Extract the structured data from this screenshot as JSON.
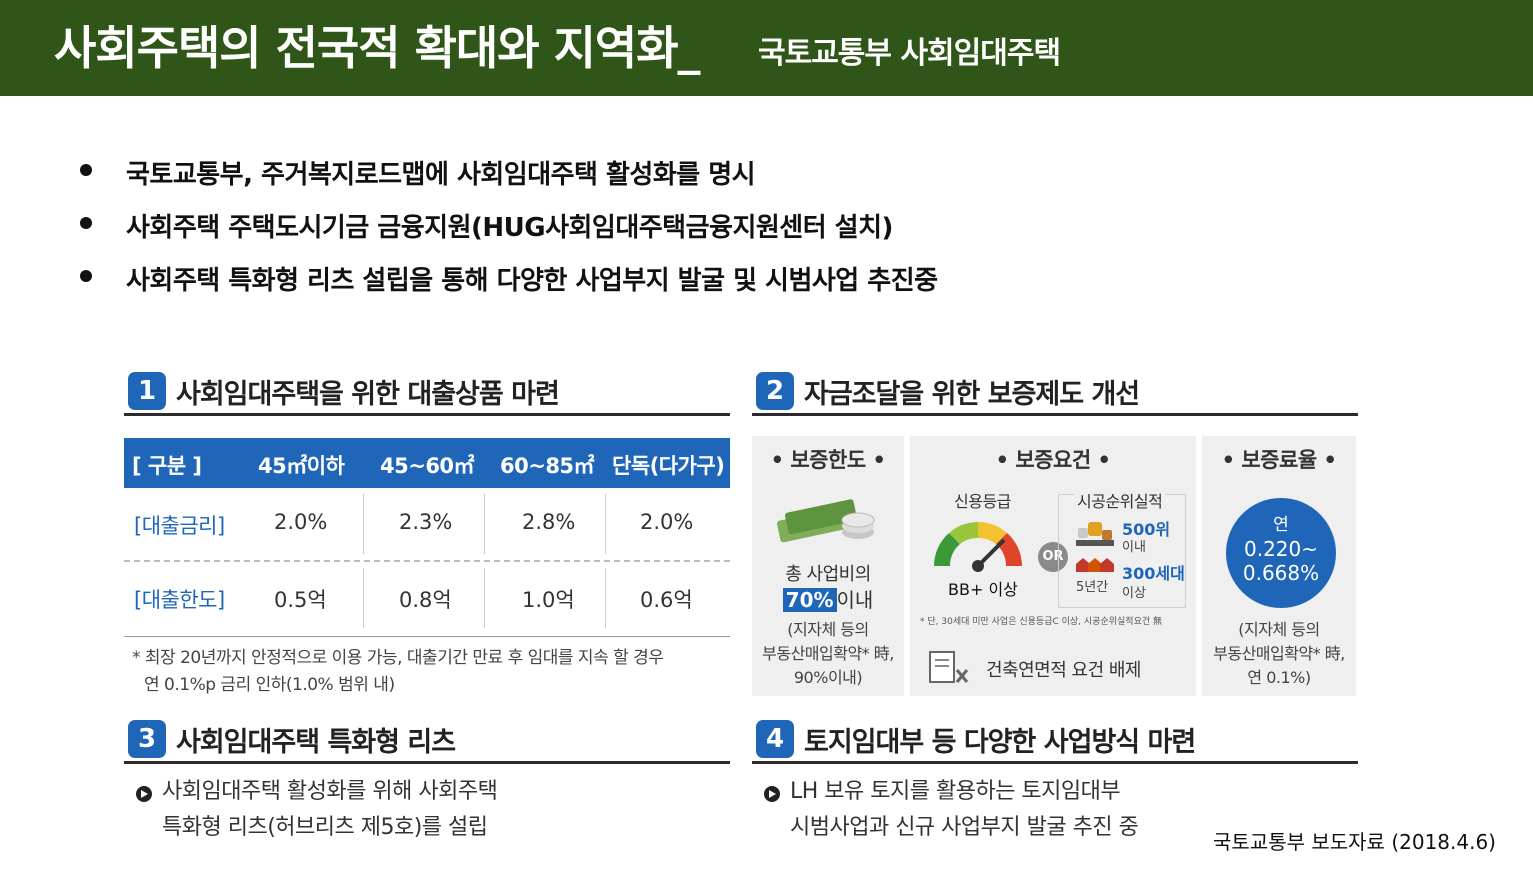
{
  "header": {
    "title": "사회주택의 전국적 확대와 지역화_",
    "subtitle": "국토교통부 사회임대주택"
  },
  "bullets": [
    "국토교통부, 주거복지로드맵에 사회임대주택 활성화를 명시",
    "사회주택 주택도시기금 금융지원(HUG사회임대주택금융지원센터 설치)",
    "사회주택 특화형 리츠 설립을 통해 다양한 사업부지 발굴 및 시범사업 추진중"
  ],
  "sections": {
    "s1": {
      "num": "1",
      "title": "사회임대주택을 위한 대출상품 마련"
    },
    "s2": {
      "num": "2",
      "title": "자금조달을 위한 보증제도 개선"
    },
    "s3": {
      "num": "3",
      "title": "사회임대주택 특화형 리츠"
    },
    "s4": {
      "num": "4",
      "title": "토지임대부 등 다양한 사업방식 마련"
    }
  },
  "loan_table": {
    "headers": [
      "[  구분  ]",
      "45㎡이하",
      "45~60㎡",
      "60~85㎡",
      "단독(다가구)"
    ],
    "rows": [
      {
        "label": "[대출금리]",
        "values": [
          "2.0%",
          "2.3%",
          "2.8%",
          "2.0%"
        ]
      },
      {
        "label": "[대출한도]",
        "values": [
          "0.5억",
          "0.8억",
          "1.0억",
          "0.6억"
        ]
      }
    ],
    "note_line1": "* 최장 20년까지 안정적으로 이용 가능, 대출기간 만료 후 임대를 지속 할 경우",
    "note_line2": "연 0.1%p 금리 인하(1.0% 범위 내)"
  },
  "guarantee": {
    "limit": {
      "title": "• 보증한도 •",
      "line1": "총 사업비의",
      "highlight": "70%",
      "after_highlight": "이내",
      "line3": "(지자체 등의",
      "line4": "부동산매입확약* 時,",
      "line5": "90%이내)"
    },
    "requirements": {
      "title": "• 보증요건 •",
      "credit_label": "신용등급",
      "credit_value": "BB+ 이상",
      "or_label": "OR",
      "perf_label": "시공순위실적",
      "rank_value": "500위",
      "rank_sub": "이내",
      "years_value": "5년간",
      "units_value": "300세대",
      "units_sub": "이상",
      "footnote": "* 단, 30세대 미만 사업은 신용등급C 이상, 시공순위실적요건 無",
      "exempt": "건축연면적 요건 배제"
    },
    "rate": {
      "title": "• 보증료율 •",
      "circle_top": "연",
      "circle_line2": "0.220~",
      "circle_line3": "0.668%",
      "line1": "(지자체 등의",
      "line2": "부동산매입확약* 時,",
      "line3": "연 0.1%)"
    }
  },
  "s3_desc": [
    "사회임대주택 활성화를 위해 사회주택",
    "특화형 리츠(허브리츠 제5호)를 설립"
  ],
  "s4_desc": [
    "LH 보유 토지를 활용하는 토지임대부",
    "시범사업과 신규 사업부지 발굴 추진 중"
  ],
  "source": "국토교통부 보도자료 (2018.4.6)",
  "colors": {
    "header_bg": "#2f5518",
    "accent_blue": "#1f66b9",
    "panel_bg": "#efefef"
  }
}
